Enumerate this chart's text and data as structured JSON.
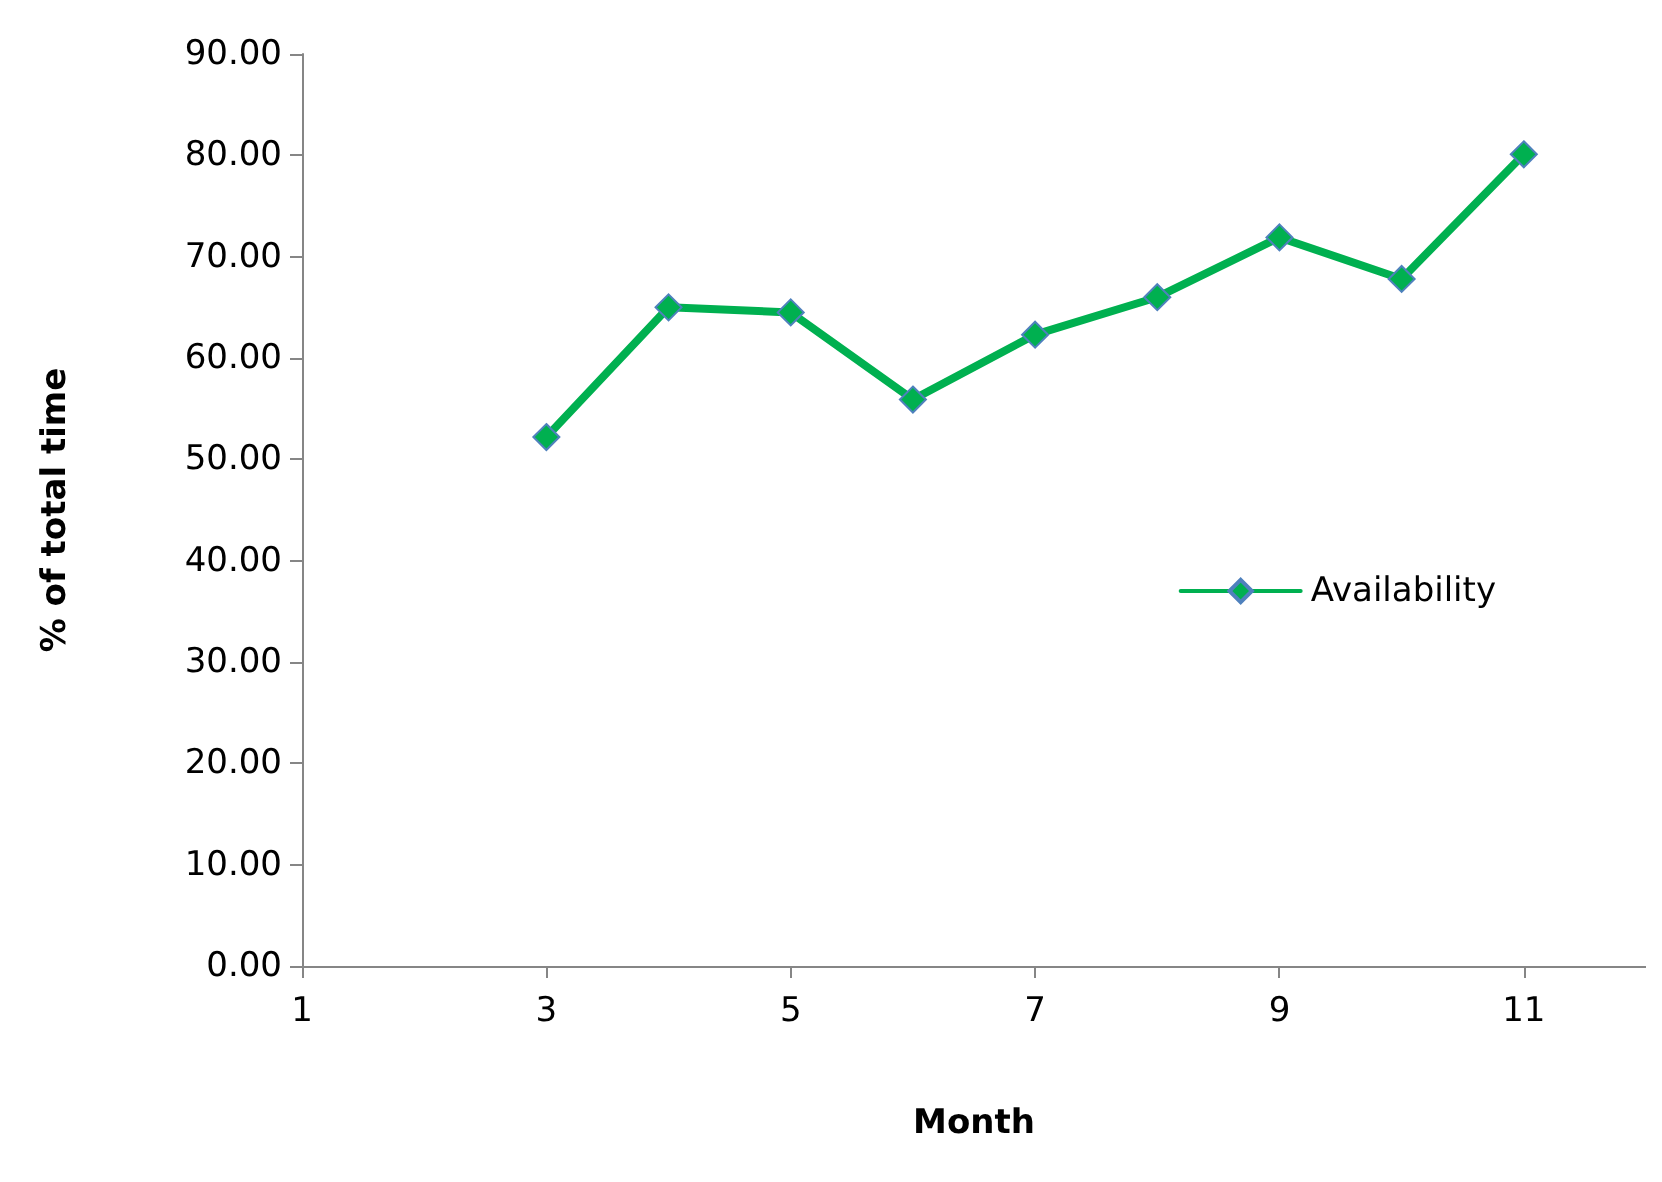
{
  "chart_data": {
    "type": "line",
    "xlabel": "Month",
    "ylabel": "% of total time",
    "x": [
      3,
      4,
      5,
      6,
      7,
      8,
      9,
      10,
      11
    ],
    "series": [
      {
        "name": "Availability",
        "color": "#00b050",
        "values": [
          52.2,
          65.0,
          64.5,
          55.9,
          62.3,
          66.0,
          71.9,
          67.8,
          80.1
        ]
      }
    ],
    "xlim": [
      1,
      12
    ],
    "xticks": [
      1,
      3,
      5,
      7,
      9,
      11
    ],
    "ylim": [
      0,
      90
    ],
    "yticks": [
      {
        "value": 0,
        "label": "0.00"
      },
      {
        "value": 10,
        "label": "10.00"
      },
      {
        "value": 20,
        "label": "20.00"
      },
      {
        "value": 30,
        "label": "30.00"
      },
      {
        "value": 40,
        "label": "40.00"
      },
      {
        "value": 50,
        "label": "50.00"
      },
      {
        "value": 60,
        "label": "60.00"
      },
      {
        "value": 70,
        "label": "70.00"
      },
      {
        "value": 80,
        "label": "80.00"
      },
      {
        "value": 90,
        "label": "90.00"
      }
    ],
    "grid": false,
    "legend": "right",
    "marker": "diamond",
    "line_style": "solid"
  }
}
